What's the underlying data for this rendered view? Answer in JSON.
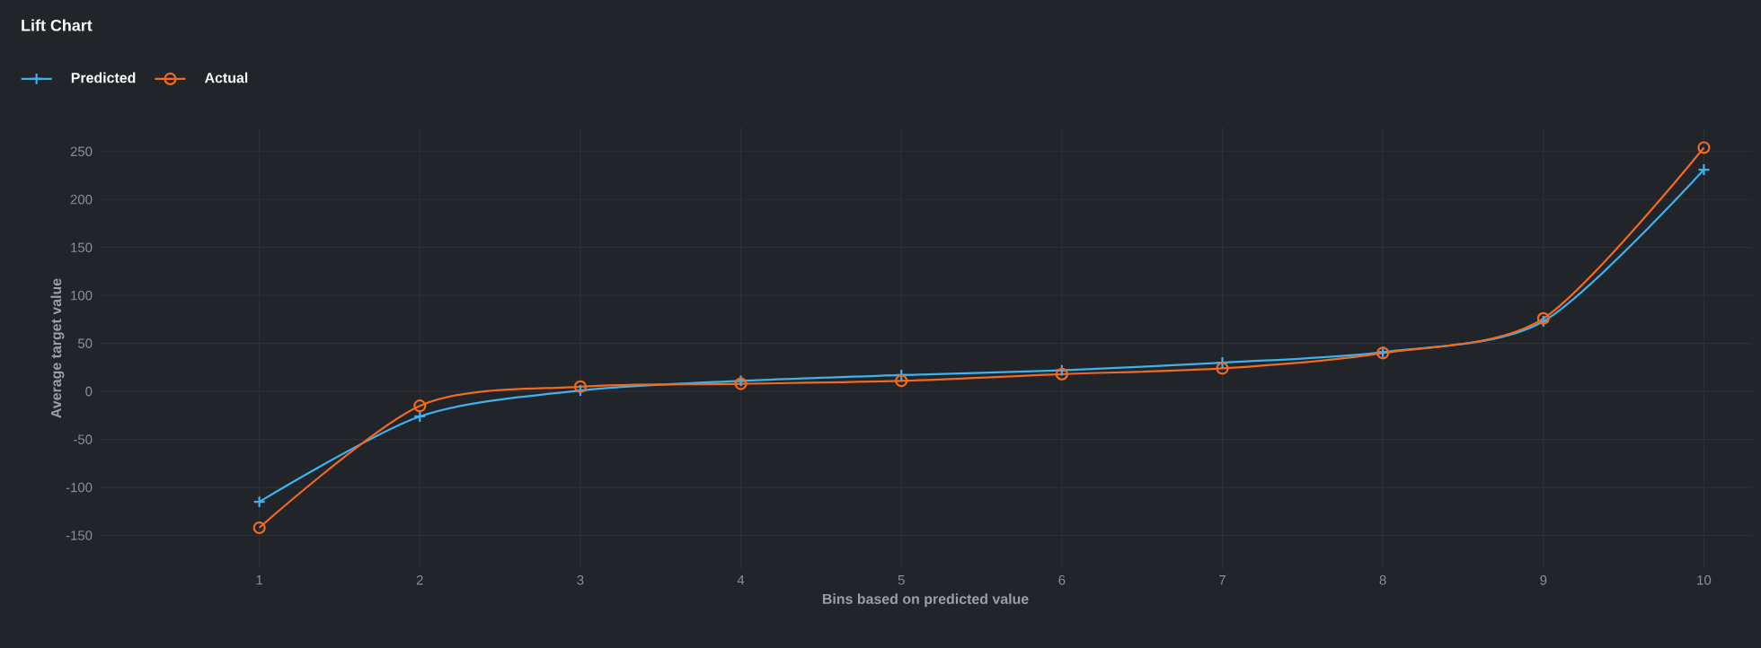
{
  "chart_data": {
    "type": "line",
    "title": "Lift Chart",
    "xlabel": "Bins based on predicted value",
    "ylabel": "Average target value",
    "x": [
      1,
      2,
      3,
      4,
      5,
      6,
      7,
      8,
      9,
      10
    ],
    "series": [
      {
        "name": "Predicted",
        "color": "#3fb1ef",
        "marker": "cross",
        "values": [
          -115,
          -26,
          1,
          11,
          17,
          22,
          30,
          41,
          73,
          231
        ]
      },
      {
        "name": "Actual",
        "color": "#f26a21",
        "marker": "circle",
        "values": [
          -142,
          -15,
          5,
          8,
          11,
          18,
          24,
          40,
          76,
          254
        ]
      }
    ],
    "xlim": [
      0,
      10.3
    ],
    "xticks": [
      1,
      2,
      3,
      4,
      5,
      6,
      7,
      8,
      9,
      10
    ],
    "ylim": [
      -185,
      275
    ],
    "yticks": [
      -150,
      -100,
      -50,
      0,
      50,
      100,
      150,
      200,
      250
    ],
    "grid": true,
    "legend": "top left",
    "line_style": "solid"
  }
}
